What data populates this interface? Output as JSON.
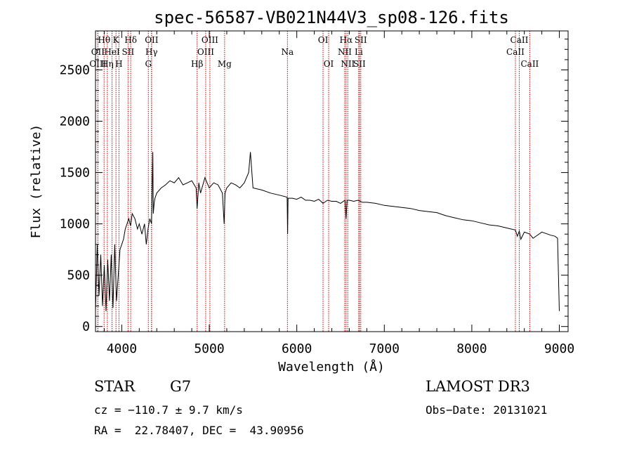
{
  "chart_data": {
    "type": "line",
    "title": "spec-56587-VB021N44V3_sp08-126.fits",
    "xlabel": "Wavelength (Å)",
    "ylabel": "Flux (relative)",
    "xlim": [
      3700,
      9100
    ],
    "ylim": [
      -50,
      2880
    ],
    "xticks": [
      4000,
      5000,
      6000,
      7000,
      8000,
      9000
    ],
    "yticks": [
      0,
      500,
      1000,
      1500,
      2000,
      2500
    ],
    "grid": false,
    "series": [
      {
        "name": "flux",
        "x": [
          3700,
          3720,
          3740,
          3760,
          3780,
          3800,
          3820,
          3840,
          3860,
          3880,
          3900,
          3920,
          3940,
          3960,
          3980,
          4000,
          4020,
          4040,
          4060,
          4080,
          4100,
          4120,
          4150,
          4180,
          4200,
          4230,
          4260,
          4280,
          4300,
          4320,
          4340,
          4355,
          4360,
          4370,
          4380,
          4400,
          4450,
          4500,
          4550,
          4600,
          4650,
          4700,
          4750,
          4800,
          4850,
          4861,
          4880,
          4900,
          4950,
          5000,
          5050,
          5100,
          5150,
          5170,
          5180,
          5200,
          5250,
          5300,
          5350,
          5400,
          5450,
          5470,
          5500,
          5600,
          5700,
          5800,
          5890,
          5895,
          5900,
          5950,
          6000,
          6050,
          6100,
          6150,
          6200,
          6250,
          6300,
          6350,
          6400,
          6450,
          6500,
          6550,
          6563,
          6575,
          6600,
          6650,
          6700,
          6750,
          6800,
          6900,
          7000,
          7100,
          7200,
          7300,
          7400,
          7500,
          7600,
          7700,
          7800,
          7900,
          8000,
          8100,
          8200,
          8300,
          8400,
          8498,
          8520,
          8542,
          8560,
          8600,
          8662,
          8700,
          8800,
          8900,
          8950,
          8980,
          9000
        ],
        "values": [
          150,
          800,
          300,
          700,
          200,
          600,
          150,
          650,
          250,
          700,
          180,
          800,
          250,
          500,
          750,
          800,
          850,
          950,
          1000,
          1050,
          980,
          1100,
          1050,
          950,
          1000,
          900,
          1000,
          800,
          950,
          1050,
          1000,
          1700,
          1100,
          1200,
          1250,
          1300,
          1350,
          1380,
          1420,
          1400,
          1450,
          1380,
          1400,
          1420,
          1350,
          1150,
          1400,
          1300,
          1450,
          1350,
          1400,
          1380,
          1300,
          1000,
          1300,
          1350,
          1400,
          1380,
          1350,
          1400,
          1500,
          1700,
          1350,
          1330,
          1300,
          1280,
          1260,
          900,
          1250,
          1250,
          1240,
          1260,
          1230,
          1230,
          1220,
          1240,
          1200,
          1230,
          1220,
          1220,
          1200,
          1230,
          1050,
          1230,
          1230,
          1220,
          1230,
          1210,
          1210,
          1200,
          1180,
          1170,
          1160,
          1150,
          1130,
          1120,
          1110,
          1080,
          1060,
          1040,
          1030,
          1010,
          990,
          980,
          960,
          940,
          880,
          930,
          850,
          920,
          900,
          860,
          920,
          890,
          880,
          860,
          150
        ]
      }
    ],
    "lines": [
      {
        "name": "Hθ",
        "x": 3798,
        "row": 1
      },
      {
        "name": "K",
        "x": 3934,
        "row": 1
      },
      {
        "name": "Hδ",
        "x": 4102,
        "row": 1
      },
      {
        "name": "OII",
        "x": 4341,
        "row": 1
      },
      {
        "name": "OIII",
        "x": 5007,
        "row": 1
      },
      {
        "name": "OI",
        "x": 6300,
        "row": 1
      },
      {
        "name": "Hα",
        "x": 6563,
        "row": 1
      },
      {
        "name": "SII",
        "x": 6731,
        "row": 1
      },
      {
        "name": "CaII",
        "x": 8542,
        "row": 1
      },
      {
        "name": "OII",
        "x": 3727,
        "row": 2
      },
      {
        "name": "HeI",
        "x": 3889,
        "row": 2
      },
      {
        "name": "SII",
        "x": 4072,
        "row": 2
      },
      {
        "name": "Hγ",
        "x": 4340,
        "row": 2
      },
      {
        "name": "OIII",
        "x": 4959,
        "row": 2
      },
      {
        "name": "Na",
        "x": 5893,
        "row": 2
      },
      {
        "name": "NII",
        "x": 6548,
        "row": 2
      },
      {
        "name": "Li",
        "x": 6708,
        "row": 2
      },
      {
        "name": "CaII",
        "x": 8498,
        "row": 2
      },
      {
        "name": "OIII",
        "x": 3727,
        "row": 3
      },
      {
        "name": "Hη",
        "x": 3835,
        "row": 3
      },
      {
        "name": "H",
        "x": 3968,
        "row": 3
      },
      {
        "name": "G",
        "x": 4304,
        "row": 3
      },
      {
        "name": "Hβ",
        "x": 4861,
        "row": 3
      },
      {
        "name": "Mg",
        "x": 5175,
        "row": 3
      },
      {
        "name": "OI",
        "x": 6364,
        "row": 3
      },
      {
        "name": "NII",
        "x": 6583,
        "row": 3
      },
      {
        "name": "SII",
        "x": 6716,
        "row": 3
      },
      {
        "name": "CaII",
        "x": 8662,
        "row": 3
      }
    ]
  },
  "footer": {
    "object_class": "STAR",
    "subclass": "G7",
    "survey": "LAMOST DR3",
    "cz": "cz = −110.7 ± 9.7 km/s",
    "obs_date": "Obs−Date: 20131021",
    "radec": "RA =  22.78407, DEC =  43.90956"
  },
  "colors": {
    "spectrum": "#000000",
    "line_markers": "#cc0000",
    "axes": "#000000",
    "background": "#ffffff"
  }
}
